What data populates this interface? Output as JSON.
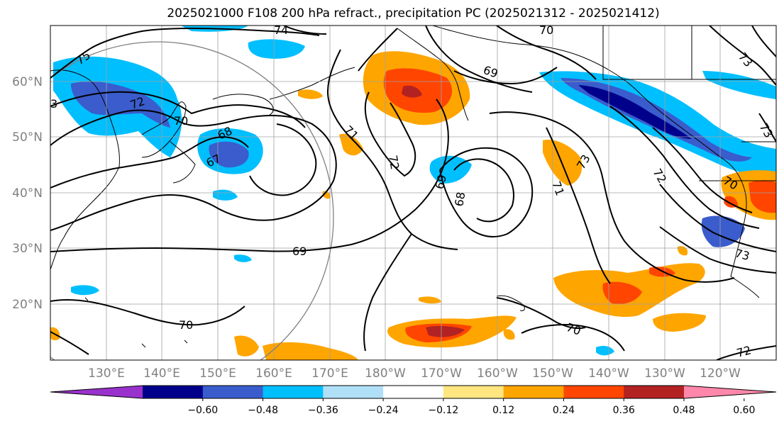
{
  "title": "2025021000 F108 200 hPa refract., precipitation PC (2025021312 - 2025021412)",
  "lat_labels": [
    "60°N",
    "50°N",
    "40°N",
    "30°N",
    "20°N"
  ],
  "lon_labels": [
    "130°E",
    "140°E",
    "150°E",
    "160°E",
    "170°E",
    "180°W",
    "170°W",
    "160°W",
    "150°W",
    "140°W",
    "130°W",
    "120°W"
  ],
  "colorbar": {
    "colors": [
      "#9932cc",
      "#00008b",
      "#3a5ccc",
      "#00bfff",
      "#b0e0f8",
      "#ffffff",
      "#ffe680",
      "#ffa500",
      "#ff4500",
      "#b22222",
      "#ff88aa"
    ],
    "ticks": [
      "−0.60",
      "−0.48",
      "−0.36",
      "−0.24",
      "−0.12",
      "0.12",
      "0.24",
      "0.36",
      "0.48",
      "0.60"
    ]
  },
  "contour_labels": [
    "75",
    "74",
    "70",
    "73",
    "72",
    "70",
    "68",
    "67",
    "71",
    "72",
    "69",
    "69",
    "68",
    "73",
    "71",
    "72",
    "70",
    "73",
    "69",
    "70",
    "70",
    "72",
    "73",
    "3"
  ],
  "colors": {
    "contour": "#000000",
    "coast": "#000000",
    "grid": "#a0a0a0",
    "tick_text": "#808080"
  }
}
